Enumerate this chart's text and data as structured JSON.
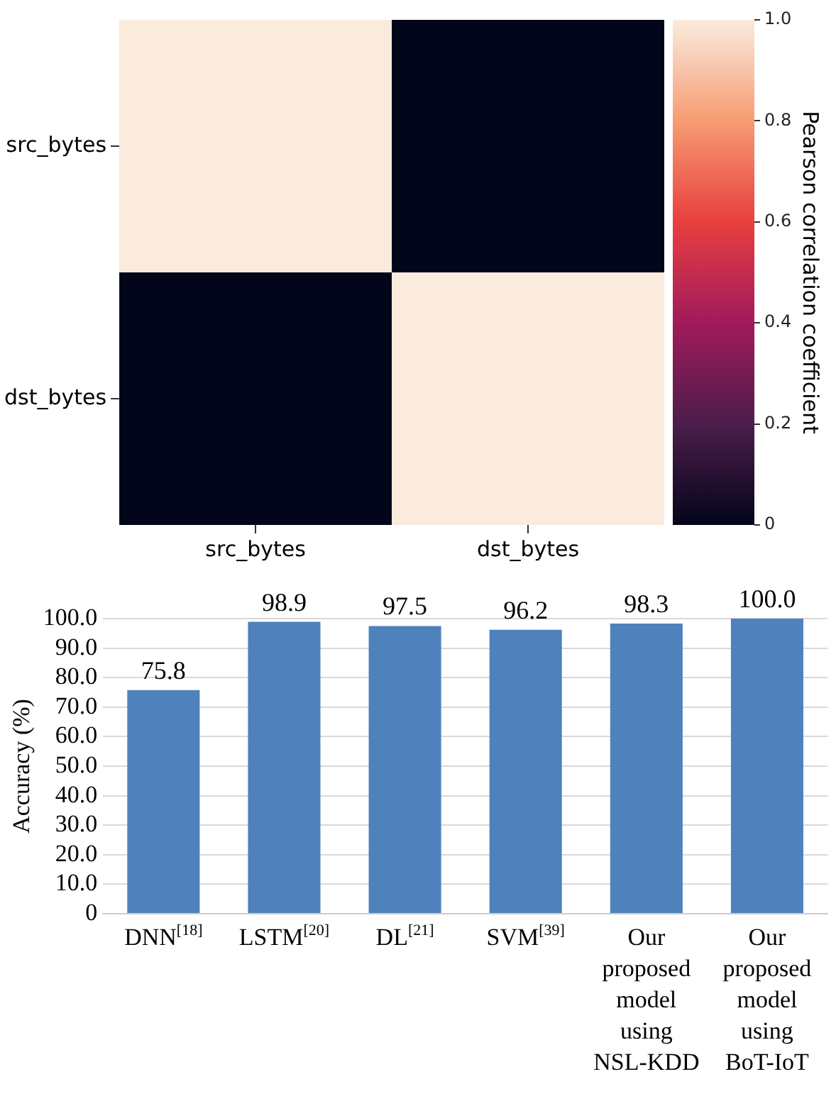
{
  "chart_data": [
    {
      "type": "heatmap",
      "categories": [
        "src_bytes",
        "dst_bytes"
      ],
      "y_categories": [
        "src_bytes",
        "dst_bytes"
      ],
      "cells": [
        [
          1,
          0
        ],
        [
          0,
          1
        ]
      ],
      "clim": [
        0,
        1
      ],
      "cticks": [
        0,
        0.2,
        0.4,
        0.6,
        0.8,
        {
          "value": 1,
          "label": "1.0"
        }
      ],
      "clabel": "Pearson correlation coefficient"
    },
    {
      "type": "bar",
      "categories": [
        "DNN$^{[18]}$",
        "LSTM$^{[20]}$",
        "DL$^{[21]}$",
        "SVM$^{[39]}$",
        "Our proposed model using NSL-KDD",
        "Our proposed model using BoT-IoT"
      ],
      "values": [
        75.8,
        98.9,
        97.5,
        96.2,
        98.3,
        100
      ],
      "value_labels": [
        "75.8",
        "98.9",
        "97.5",
        "96.2",
        "98.3",
        "100.0"
      ],
      "color": "#4f81bd",
      "ylabel": "Accuracy (%)",
      "ylim": [
        0,
        100
      ],
      "yticks": [
        0,
        {
          "value": 10,
          "label": "10.0"
        },
        {
          "value": 20,
          "label": "20.0"
        },
        {
          "value": 30,
          "label": "30.0"
        },
        {
          "value": 40,
          "label": "40.0"
        },
        {
          "value": 50,
          "label": "50.0"
        },
        {
          "value": 60,
          "label": "60.0"
        },
        {
          "value": 70,
          "label": "70.0"
        },
        {
          "value": 80,
          "label": "80.0"
        },
        {
          "value": 90,
          "label": "90.0"
        },
        {
          "value": 100,
          "label": "100.0"
        }
      ],
      "grid": "y"
    }
  ]
}
